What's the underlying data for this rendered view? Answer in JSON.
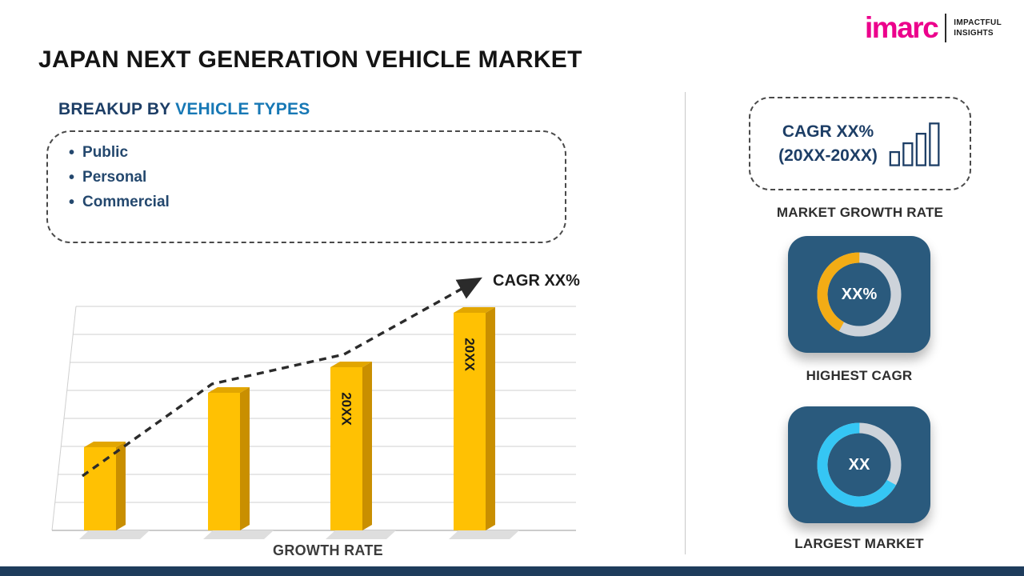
{
  "title": "JAPAN NEXT GENERATION VEHICLE MARKET",
  "logo": {
    "brand": "imarc",
    "tagline_top": "IMPACTFUL",
    "tagline_bottom": "INSIGHTS"
  },
  "breakup": {
    "heading_prefix": "BREAKUP BY ",
    "heading_highlight": "VEHICLE TYPES",
    "bullet_icon": "•",
    "items": [
      "Public",
      "Personal",
      "Commercial"
    ]
  },
  "chart_data": {
    "type": "bar",
    "categories": [
      "",
      "",
      "20XX",
      "20XX"
    ],
    "values": [
      26,
      43,
      51,
      68
    ],
    "ylim": [
      0,
      70
    ],
    "title": "",
    "xlabel": "GROWTH RATE",
    "ylabel": "",
    "annotation": "CAGR XX%",
    "trend": "dashed-arrow-up",
    "grid": true,
    "bar_color": "#FFC103"
  },
  "sidebar": {
    "growth_box": {
      "line1": "CAGR XX%",
      "line2": "(20XX-20XX)"
    },
    "market_growth_caption": "MARKET GROWTH RATE",
    "highest_cagr": {
      "value": "XX%",
      "caption": "HIGHEST CAGR",
      "accent": "#F3AC15",
      "fraction": 0.42
    },
    "largest_market": {
      "value": "XX",
      "caption": "LARGEST MARKET",
      "accent": "#35C6F4",
      "fraction": 0.67
    }
  },
  "colors": {
    "navy_card": "#2A5A7D",
    "heading_navy": "#1D3E66",
    "heading_blue": "#1778B5",
    "bullet_text": "#24486E",
    "donut_track": "#CDD3DA",
    "footer": "#1E3C5C",
    "logo_pink": "#EC008C"
  }
}
